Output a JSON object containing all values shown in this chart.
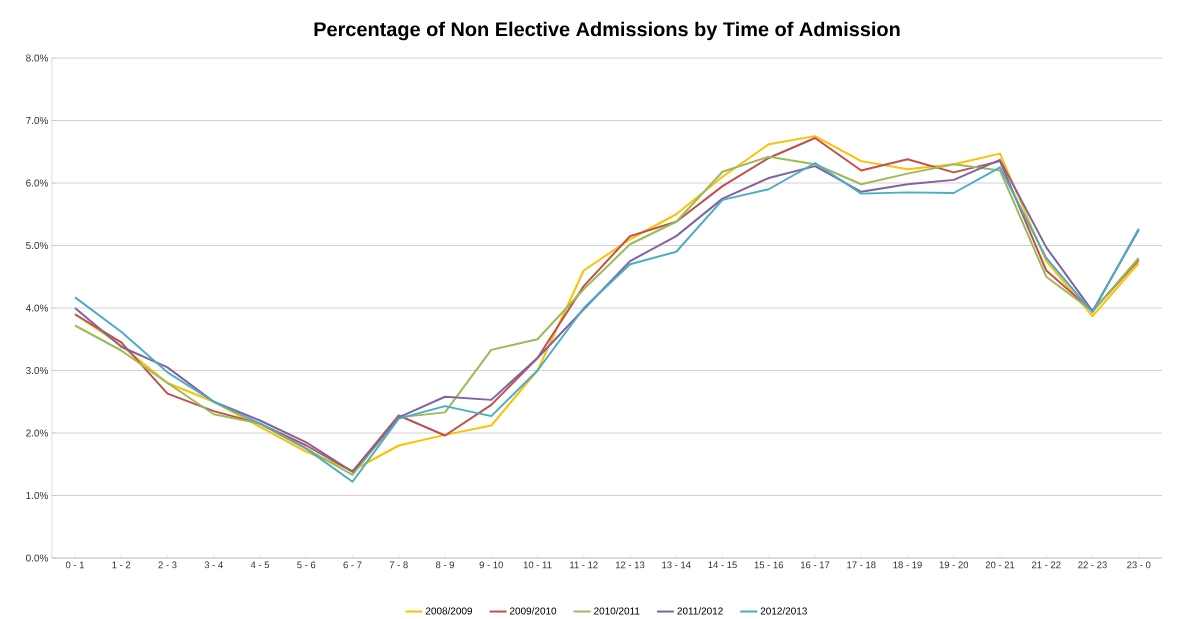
{
  "chart_data": {
    "type": "line",
    "title": "Percentage of Non Elective Admissions by Time of Admission",
    "categories": [
      "0 - 1",
      "1 - 2",
      "2 - 3",
      "3 - 4",
      "4 - 5",
      "5 - 6",
      "6 - 7",
      "7 - 8",
      "8 - 9",
      "9 - 10",
      "10 - 11",
      "11 - 12",
      "12 - 13",
      "13 - 14",
      "14 - 15",
      "15 - 16",
      "16 - 17",
      "17 - 18",
      "18 - 19",
      "19 - 20",
      "20 - 21",
      "21 - 22",
      "22 - 23",
      "23 - 0"
    ],
    "series": [
      {
        "name": "2008/2009",
        "color": "#ffc000",
        "values": [
          3.9,
          3.4,
          2.8,
          2.5,
          2.1,
          1.7,
          1.4,
          1.8,
          1.97,
          2.12,
          3.0,
          4.6,
          5.1,
          5.5,
          6.1,
          6.62,
          6.75,
          6.35,
          6.22,
          6.3,
          6.47,
          4.75,
          3.87,
          4.72
        ]
      },
      {
        "name": "2009/2010",
        "color": "#c0504d",
        "values": [
          3.9,
          3.45,
          2.63,
          2.35,
          2.15,
          1.8,
          1.38,
          2.28,
          1.96,
          2.45,
          3.2,
          4.35,
          5.15,
          5.38,
          5.95,
          6.4,
          6.72,
          6.2,
          6.38,
          6.17,
          6.35,
          4.6,
          3.95,
          4.77
        ]
      },
      {
        "name": "2010/2011",
        "color": "#9bbb59",
        "values": [
          3.72,
          3.32,
          2.8,
          2.3,
          2.15,
          1.75,
          1.33,
          2.25,
          2.33,
          3.33,
          3.5,
          4.3,
          5.02,
          5.38,
          6.18,
          6.42,
          6.3,
          5.98,
          6.15,
          6.3,
          6.2,
          4.5,
          3.95,
          4.8
        ]
      },
      {
        "name": "2011/2012",
        "color": "#8064a2",
        "values": [
          4.0,
          3.38,
          3.05,
          2.5,
          2.2,
          1.85,
          1.38,
          2.25,
          2.58,
          2.53,
          3.2,
          3.98,
          4.75,
          5.15,
          5.75,
          6.08,
          6.27,
          5.86,
          5.98,
          6.05,
          6.37,
          4.97,
          3.95,
          5.25
        ]
      },
      {
        "name": "2012/2013",
        "color": "#4bacc6",
        "values": [
          4.17,
          3.62,
          2.97,
          2.5,
          2.15,
          1.75,
          1.22,
          2.23,
          2.43,
          2.27,
          3.0,
          4.0,
          4.7,
          4.9,
          5.73,
          5.9,
          6.32,
          5.83,
          5.85,
          5.84,
          6.25,
          4.8,
          3.93,
          5.27
        ]
      }
    ],
    "ylim": [
      0,
      8
    ],
    "yticks": [
      {
        "value": 0,
        "label": "0.0%"
      },
      {
        "value": 1,
        "label": "1.0%"
      },
      {
        "value": 2,
        "label": "2.0%"
      },
      {
        "value": 3,
        "label": "3.0%"
      },
      {
        "value": 4,
        "label": "4.0%"
      },
      {
        "value": 5,
        "label": "5.0%"
      },
      {
        "value": 6,
        "label": "6.0%"
      },
      {
        "value": 7,
        "label": "7.0%"
      },
      {
        "value": 8,
        "label": "8.0%"
      }
    ],
    "grid": "y",
    "legend": "bottom",
    "marker": "none",
    "line_style": "solid"
  }
}
